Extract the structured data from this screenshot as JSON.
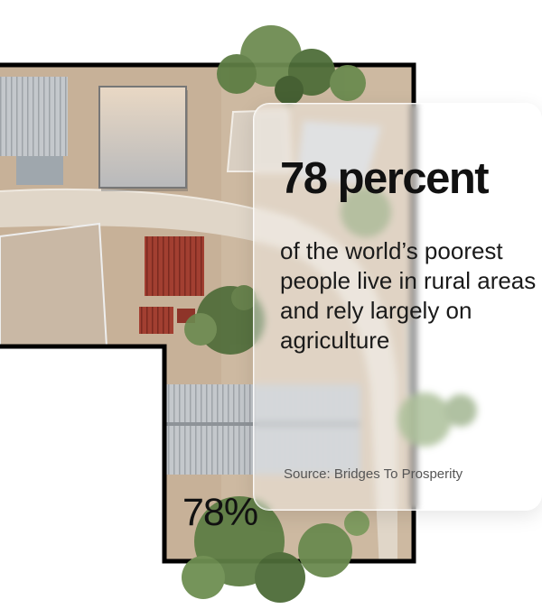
{
  "headline": "78 percent",
  "body": "of the world’s poorest people live in rural areas and rely largely on agriculture",
  "source": "Source: Bridges To Prosperity",
  "stat": "78%",
  "colors": {
    "ground": "#c8b39a",
    "road": "#ddd3c6",
    "outline": "#000000",
    "tin_roof": "#b9bec3",
    "red_roof": "#9a3a2e",
    "tree": "#5a7a42",
    "text": "#111111"
  }
}
